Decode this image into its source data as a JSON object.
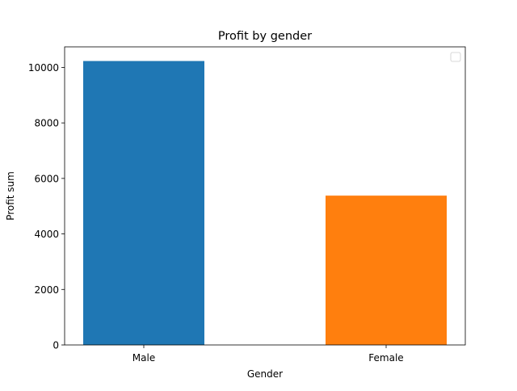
{
  "chart_data": {
    "type": "bar",
    "title": "Profit by gender",
    "xlabel": "Gender",
    "ylabel": "Profit sum",
    "categories": [
      "Male",
      "Female"
    ],
    "values": [
      10230,
      5380
    ],
    "colors": [
      "#1f77b4",
      "#ff7f0e"
    ],
    "ylim": [
      0,
      10740
    ],
    "yticks": [
      0,
      2000,
      4000,
      6000,
      8000,
      10000
    ],
    "ytick_labels": [
      "0",
      "2000",
      "4000",
      "6000",
      "8000",
      "10000"
    ],
    "grid": false,
    "legend": {
      "location": "upper right",
      "entries": []
    }
  }
}
